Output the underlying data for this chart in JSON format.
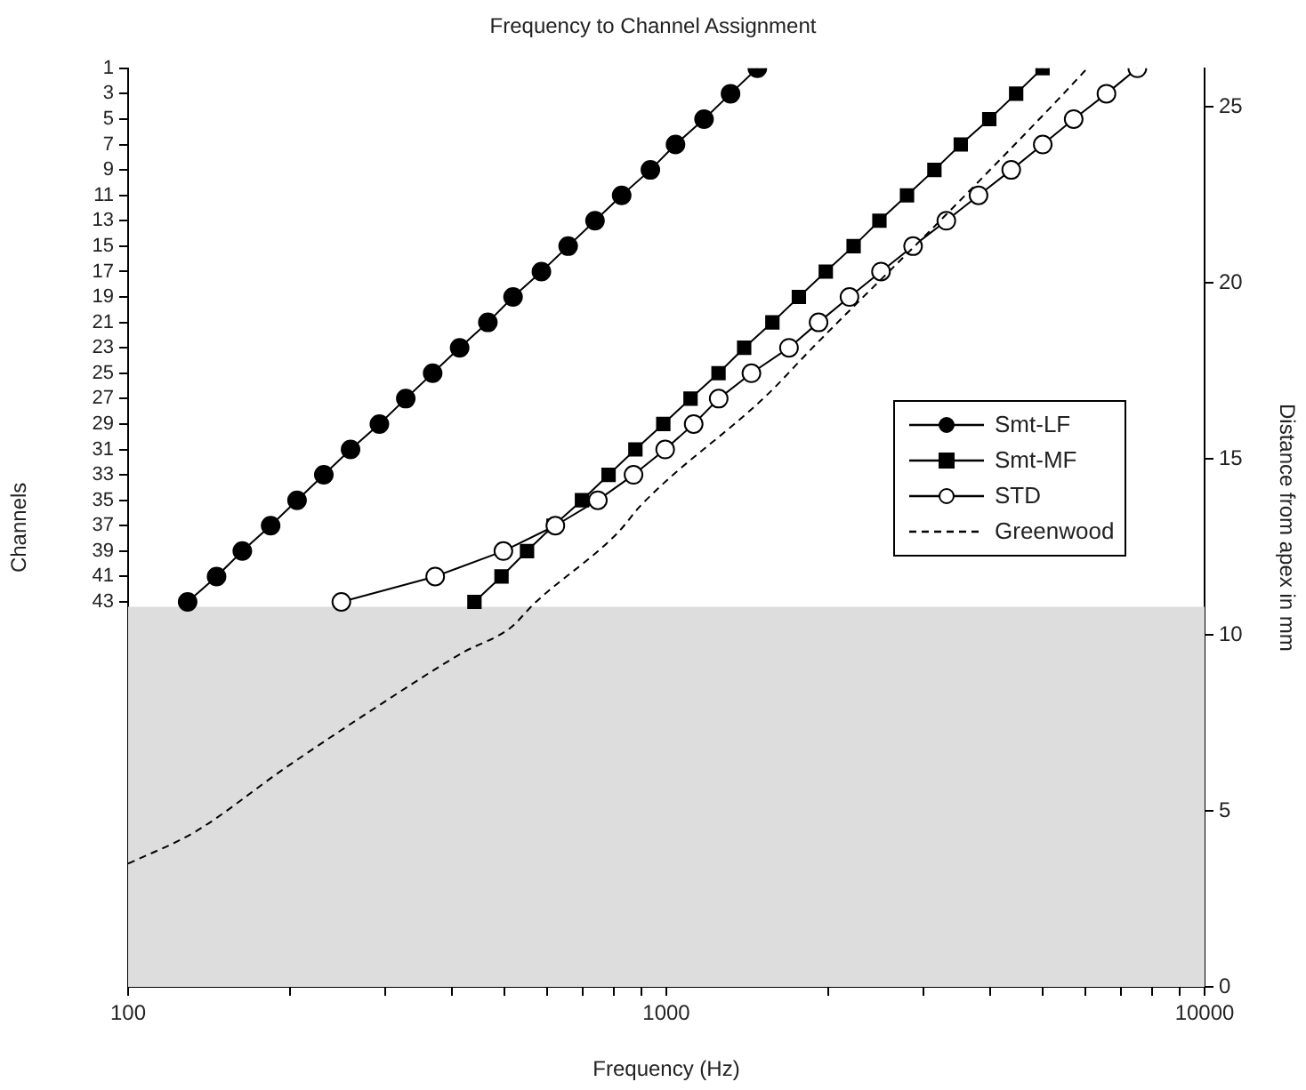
{
  "chart_data": {
    "type": "line",
    "title": "Frequency to Channel Assignment",
    "xlabel": "Frequency (Hz)",
    "ylabel": "Channels",
    "y2label": "Distance from apex in mm",
    "log": "x",
    "grid": false,
    "legend": "right",
    "xlim": [
      100,
      10000
    ],
    "xticks": [
      100,
      {
        "value": 200,
        "label": null
      },
      {
        "value": 300,
        "label": null
      },
      {
        "value": 400,
        "label": null
      },
      {
        "value": 500,
        "label": null
      },
      {
        "value": 600,
        "label": null
      },
      {
        "value": 700,
        "label": null
      },
      {
        "value": 800,
        "label": null
      },
      {
        "value": 900,
        "label": null
      },
      1000,
      {
        "value": 2000,
        "label": null
      },
      {
        "value": 3000,
        "label": null
      },
      {
        "value": 4000,
        "label": null
      },
      {
        "value": 5000,
        "label": null
      },
      {
        "value": 6000,
        "label": null
      },
      {
        "value": 7000,
        "label": null
      },
      {
        "value": 8000,
        "label": null
      },
      {
        "value": 9000,
        "label": null
      },
      10000
    ],
    "ylim": [
      73.3,
      1
    ],
    "yticks": [
      1,
      3,
      5,
      7,
      9,
      11,
      13,
      15,
      17,
      19,
      21,
      23,
      25,
      27,
      29,
      31,
      33,
      35,
      37,
      39,
      41,
      43
    ],
    "y2lim": [
      0,
      26.1
    ],
    "y2ticks": [
      0,
      5,
      10,
      15,
      20,
      25
    ],
    "bands": [
      {
        "axis": "y2",
        "from": 0,
        "to": 10.8,
        "color": "#dddddd"
      }
    ],
    "series": [
      {
        "name": "Smt-LF",
        "color": "#000000",
        "marker": "circle",
        "line_style": "solid",
        "x": [
          1476,
          1316,
          1175,
          1040,
          934,
          826,
          737,
          657,
          586,
          519,
          466,
          413,
          368,
          328,
          293,
          259,
          231,
          206,
          184,
          163,
          146,
          129
        ],
        "values": [
          1,
          3,
          5,
          7,
          9,
          11,
          13,
          15,
          17,
          19,
          21,
          23,
          25,
          27,
          29,
          31,
          33,
          35,
          37,
          39,
          41,
          43
        ]
      },
      {
        "name": "Smt-MF",
        "color": "#000000",
        "marker": "square",
        "line_style": "solid",
        "x": [
          5000,
          4466,
          3981,
          3524,
          3148,
          2800,
          2488,
          2228,
          1978,
          1763,
          1574,
          1395,
          1250,
          1109,
          987,
          876,
          781,
          697,
          617,
          551,
          494,
          440
        ],
        "values": [
          1,
          3,
          5,
          7,
          9,
          11,
          13,
          15,
          17,
          19,
          21,
          23,
          25,
          27,
          29,
          31,
          33,
          35,
          37,
          39,
          41,
          43
        ]
      },
      {
        "name": "STD",
        "color": "#ffffff",
        "marker": "circle",
        "line_style": "solid",
        "x": [
          7500,
          6572,
          5712,
          5004,
          4373,
          3802,
          3313,
          2873,
          2505,
          2189,
          1918,
          1690,
          1439,
          1251,
          1124,
          995,
          869,
          746,
          622,
          498,
          372,
          249
        ],
        "values": [
          1,
          3,
          5,
          7,
          9,
          11,
          13,
          15,
          17,
          19,
          21,
          23,
          25,
          27,
          29,
          31,
          33,
          35,
          37,
          39,
          41,
          43
        ]
      },
      {
        "name": "Greenwood",
        "color": "#000000",
        "marker": "none",
        "line_style": "dashed",
        "axis": "y2",
        "x": [
          100,
          133,
          195,
          286,
          419,
          513,
          569,
          812,
          899,
          1534,
          1880,
          3289,
          5333,
          6053
        ],
        "values": [
          3.5,
          4.4,
          6.2,
          7.9,
          9.5,
          10.2,
          10.9,
          12.9,
          13.7,
          16.8,
          18.2,
          21.9,
          25.2,
          26.1
        ]
      }
    ]
  }
}
